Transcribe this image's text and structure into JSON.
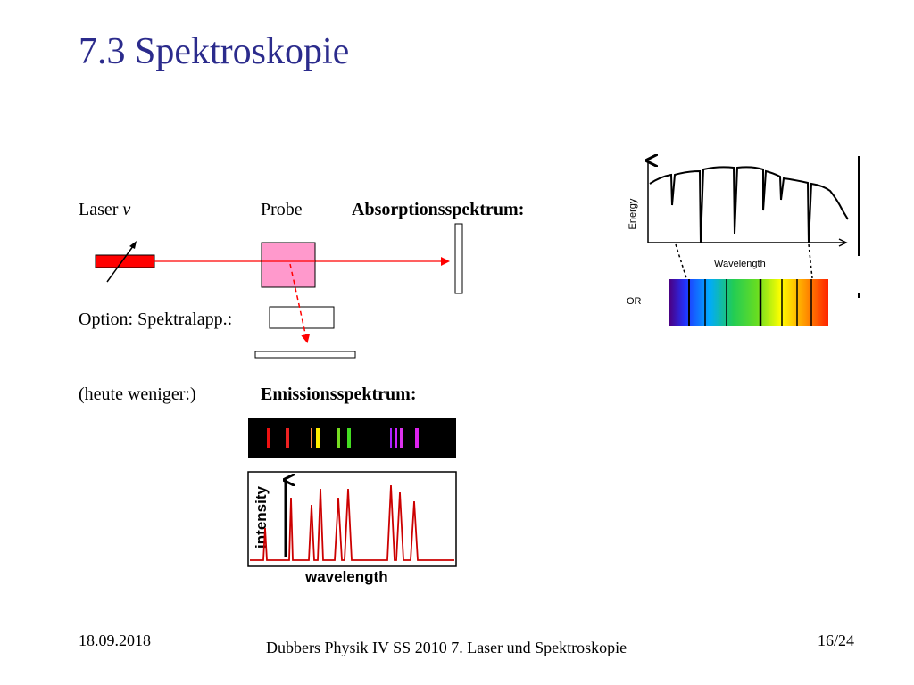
{
  "title": "7.3 Spektroskopie",
  "labels": {
    "laser": "Laser",
    "laser_symbol": "ν",
    "probe": "Probe",
    "absorption": "Absorptionsspektrum:",
    "option": "Option: Spektralapp.:",
    "heute": "(heute weniger:)",
    "emission": "Emissionsspektrum:"
  },
  "absorption_figure": {
    "y_axis_label": "Energy",
    "x_axis_label": "Wavelength",
    "or_label": "OR"
  },
  "emission_figure": {
    "y_axis_label": "intensity",
    "x_axis_label": "wavelength"
  },
  "colors": {
    "title": "#2b2b8c",
    "laser": "#ff0000",
    "probe": "#ff99cc",
    "beam": "#ff0000",
    "emission_curve": "#cc0000"
  },
  "footer": {
    "date": "18.09.2018",
    "center": "Dubbers Physik IV SS 2010 7. Laser und Spektroskopie",
    "page": "16/24"
  }
}
